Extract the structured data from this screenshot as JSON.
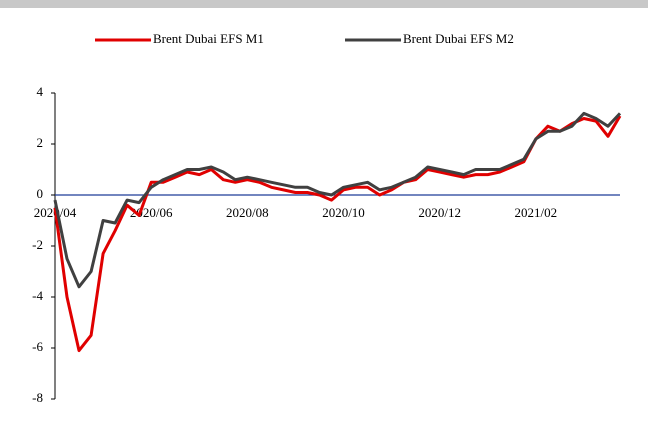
{
  "chart_data": {
    "type": "line",
    "categories": [
      "2020/04",
      null,
      null,
      null,
      null,
      null,
      null,
      null,
      "2020/06",
      null,
      null,
      null,
      null,
      null,
      null,
      null,
      "2020/08",
      null,
      null,
      null,
      null,
      null,
      null,
      null,
      "2020/10",
      null,
      null,
      null,
      null,
      null,
      null,
      null,
      "2020/12",
      null,
      null,
      null,
      null,
      null,
      null,
      null,
      "2021/02",
      null,
      null,
      null,
      null,
      null,
      null,
      null
    ],
    "series": [
      {
        "name": "Brent Dubai EFS M1",
        "color": "#e00000",
        "values": [
          -0.5,
          -4.0,
          -6.1,
          -5.5,
          -2.3,
          -1.4,
          -0.4,
          -0.8,
          0.5,
          0.5,
          0.7,
          0.9,
          0.8,
          1.0,
          0.6,
          0.5,
          0.6,
          0.5,
          0.3,
          0.2,
          0.1,
          0.1,
          0.0,
          -0.2,
          0.2,
          0.3,
          0.3,
          0.0,
          0.2,
          0.5,
          0.6,
          1.0,
          0.9,
          0.8,
          0.7,
          0.8,
          0.8,
          0.9,
          1.1,
          1.3,
          2.2,
          2.7,
          2.5,
          2.8,
          3.0,
          2.9,
          2.3,
          3.1
        ]
      },
      {
        "name": "Brent Dubai EFS M2",
        "color": "#404040",
        "values": [
          -0.2,
          -2.5,
          -3.6,
          -3.0,
          -1.0,
          -1.1,
          -0.2,
          -0.3,
          0.3,
          0.6,
          0.8,
          1.0,
          1.0,
          1.1,
          0.9,
          0.6,
          0.7,
          0.6,
          0.5,
          0.4,
          0.3,
          0.3,
          0.1,
          0.0,
          0.3,
          0.4,
          0.5,
          0.2,
          0.3,
          0.5,
          0.7,
          1.1,
          1.0,
          0.9,
          0.8,
          1.0,
          1.0,
          1.0,
          1.2,
          1.4,
          2.2,
          2.5,
          2.5,
          2.7,
          3.2,
          3.0,
          2.7,
          3.2
        ]
      }
    ],
    "ylim": [
      -8,
      4
    ],
    "yticks": [
      4,
      2,
      0,
      -2,
      -4,
      -6,
      -8
    ],
    "grid": false,
    "legend": "top"
  }
}
